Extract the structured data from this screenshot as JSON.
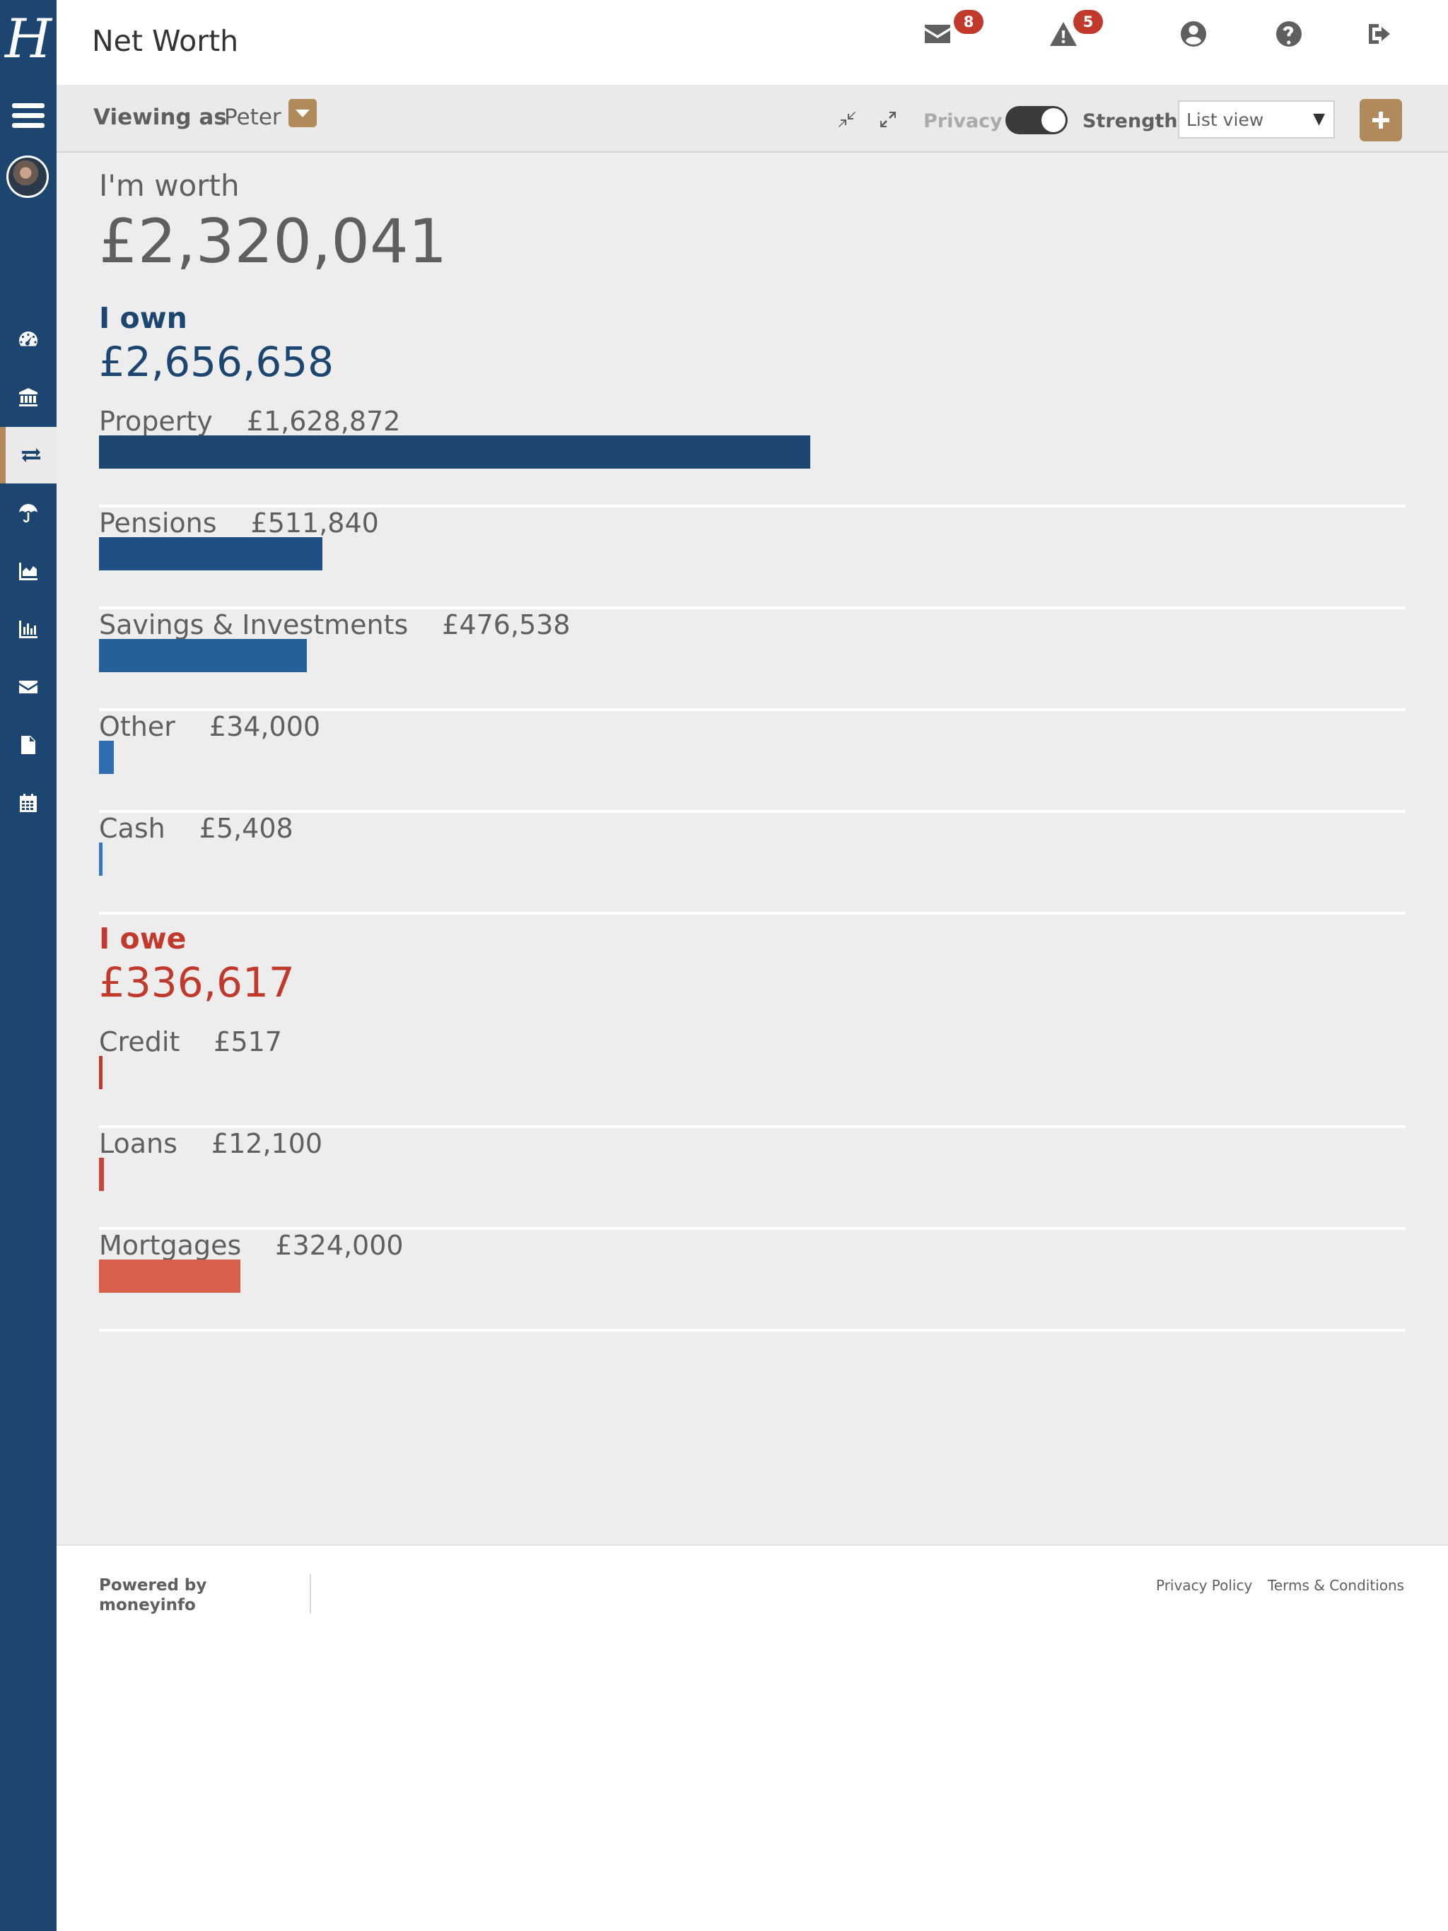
{
  "app": {
    "logo_text": "H",
    "page_title": "Net Worth"
  },
  "header": {
    "messages_count": "8",
    "alerts_count": "5",
    "icons": [
      "envelope-icon",
      "warning-icon",
      "user-icon",
      "help-icon",
      "logout-icon"
    ]
  },
  "sidebar": {
    "icons": [
      "menu-icon",
      "dashboard-icon",
      "bank-icon",
      "transfer-icon",
      "umbrella-icon",
      "area-chart-icon",
      "bar-chart-icon",
      "envelope-icon",
      "document-icon",
      "calendar-icon"
    ],
    "active": "transfer-icon"
  },
  "toolbar": {
    "viewing_label": "Viewing as",
    "viewing_value": "Peter",
    "privacy_label": "Privacy",
    "privacy_on": true,
    "strength_label": "Strength",
    "view_select_value": "List view"
  },
  "summary": {
    "worth_label": "I'm worth",
    "worth_value": "£2,320,041"
  },
  "own": {
    "title": "I own",
    "total": "£2,656,658",
    "categories": [
      {
        "label": "Property",
        "value": "£1,628,872",
        "amount": 1628872,
        "color": "#1c4570"
      },
      {
        "label": "Pensions",
        "value": "£511,840",
        "amount": 511840,
        "color": "#1f4f82"
      },
      {
        "label": "Savings & Investments",
        "value": "£476,538",
        "amount": 476538,
        "color": "#26609a"
      },
      {
        "label": "Other",
        "value": "£34,000",
        "amount": 34000,
        "color": "#2d6db0"
      },
      {
        "label": "Cash",
        "value": "£5,408",
        "amount": 5408,
        "color": "#3479c0"
      }
    ]
  },
  "owe": {
    "title": "I owe",
    "total": "£336,617",
    "categories": [
      {
        "label": "Credit",
        "value": "£517",
        "amount": 517,
        "color": "#c0392b"
      },
      {
        "label": "Loans",
        "value": "£12,100",
        "amount": 12100,
        "color": "#c9453a"
      },
      {
        "label": "Mortgages",
        "value": "£324,000",
        "amount": 324000,
        "color": "#d95f4d"
      }
    ]
  },
  "footer": {
    "powered_line1": "Powered by",
    "powered_line2": "moneyinfo",
    "privacy_policy": "Privacy Policy",
    "terms": "Terms & Conditions"
  }
}
